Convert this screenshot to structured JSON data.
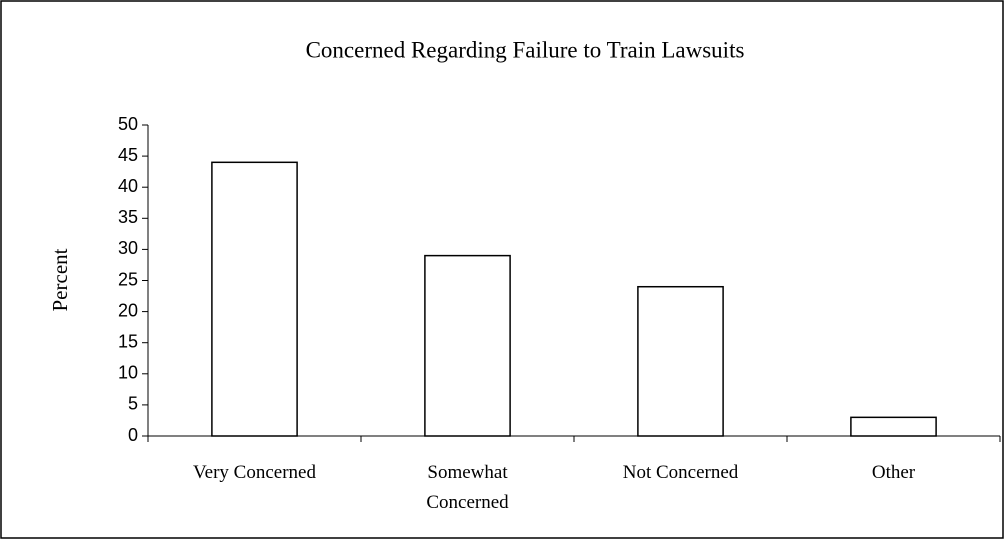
{
  "chart_data": {
    "type": "bar",
    "title": "Concerned Regarding Failure to Train Lawsuits",
    "y_label": "Percent",
    "categories": [
      "Very Concerned",
      "Somewhat Concerned",
      "Not Concerned",
      "Other"
    ],
    "values": [
      44,
      29,
      24,
      3
    ],
    "color": "#ffffff",
    "ylim": [
      0,
      50
    ],
    "yticks": [
      0,
      5,
      10,
      15,
      20,
      25,
      30,
      35,
      40,
      45,
      50
    ],
    "grid": false
  }
}
